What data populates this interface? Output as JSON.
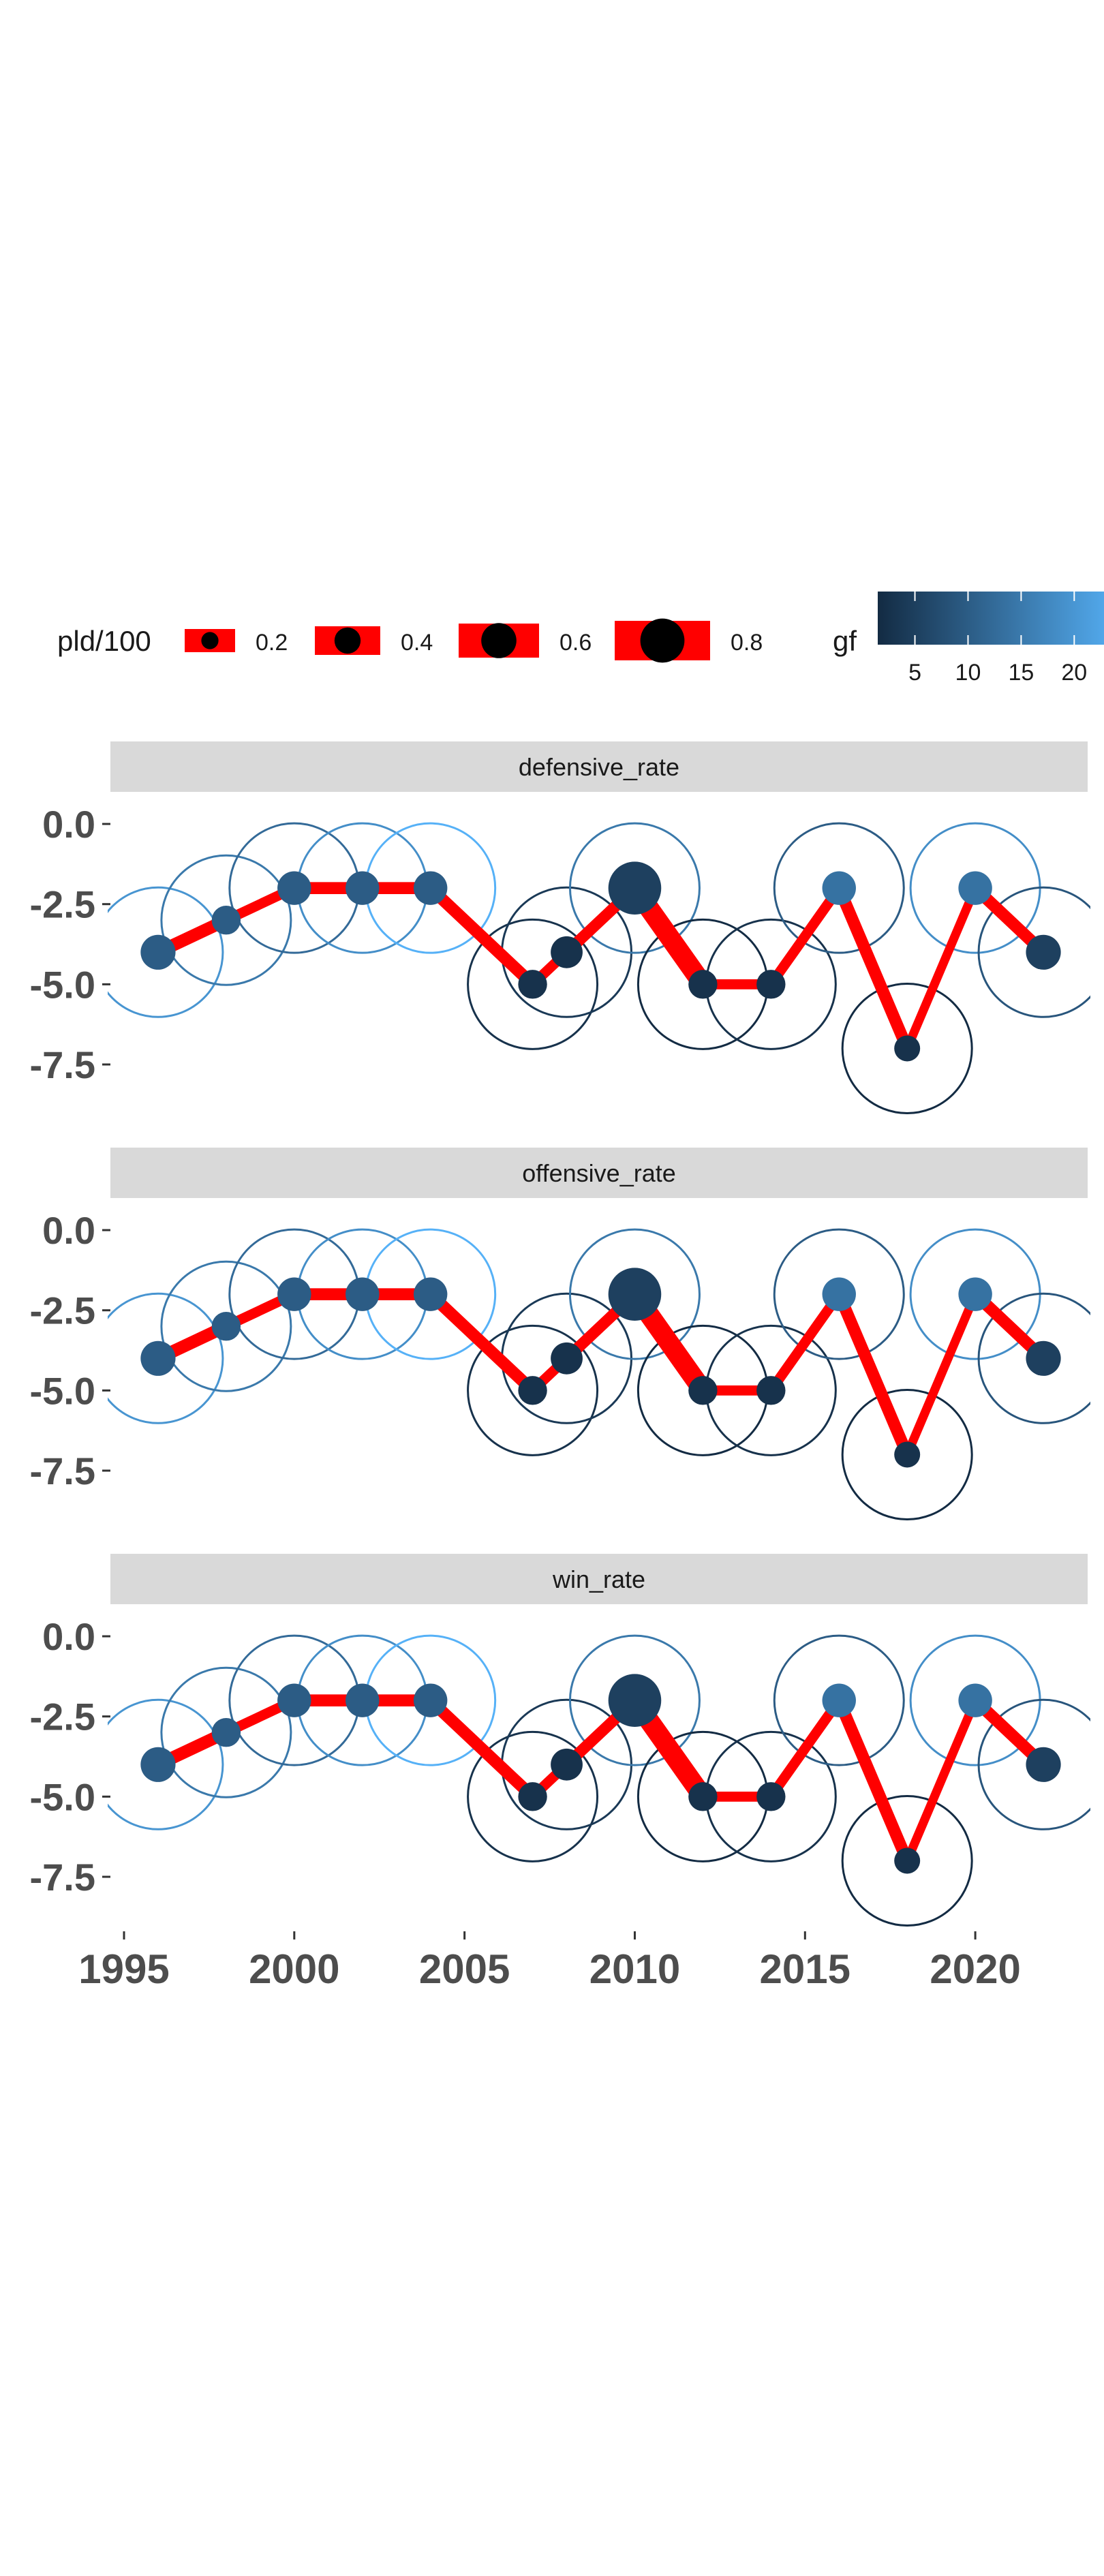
{
  "legend": {
    "size_title": "pld/100",
    "size_labels": [
      "0.2",
      "0.4",
      "0.6",
      "0.8"
    ],
    "size_values": [
      0.2,
      0.4,
      0.6,
      0.8
    ],
    "color_title": "gf",
    "color_labels": [
      "5",
      "10",
      "15",
      "20"
    ],
    "color_values": [
      5,
      10,
      15,
      20
    ]
  },
  "chart_data": {
    "type": "line",
    "facets": [
      "defensive_rate",
      "offensive_rate",
      "win_rate"
    ],
    "x": [
      1996,
      1998,
      2000,
      2002,
      2004,
      2007,
      2008,
      2010,
      2012,
      2014,
      2016,
      2018,
      2020,
      2022
    ],
    "y": [
      -4,
      -3,
      -2,
      -2,
      -2,
      -5,
      -4,
      -2,
      -5,
      -5,
      -2,
      -7,
      -2,
      -4
    ],
    "pld_per_100": [
      0.4,
      0.3,
      0.38,
      0.38,
      0.38,
      0.3,
      0.35,
      0.7,
      0.3,
      0.3,
      0.38,
      0.25,
      0.38,
      0.4
    ],
    "gf": [
      10,
      10,
      10,
      10,
      10,
      4,
      4,
      6,
      4,
      4,
      13,
      4,
      13,
      6
    ],
    "ring_gf": [
      18,
      14,
      12,
      17,
      22,
      4,
      5,
      14,
      3,
      4,
      10,
      3,
      17,
      9
    ],
    "xlim": [
      1994.6,
      2023.3
    ],
    "ylim": [
      -9.2,
      1.0
    ],
    "xticks": [
      1995,
      2000,
      2005,
      2010,
      2015,
      2020
    ],
    "yticks": [
      0.0,
      -2.5,
      -5.0,
      -7.5
    ],
    "ytick_labels": [
      "0.0",
      "-2.5",
      "-5.0",
      "-7.5"
    ],
    "gf_range": [
      3,
      22
    ],
    "line_color": "#ff0000",
    "color_low": "#132b43",
    "color_high": "#56b1f7",
    "strip_fill": "#d9d9d9",
    "grid": false
  }
}
